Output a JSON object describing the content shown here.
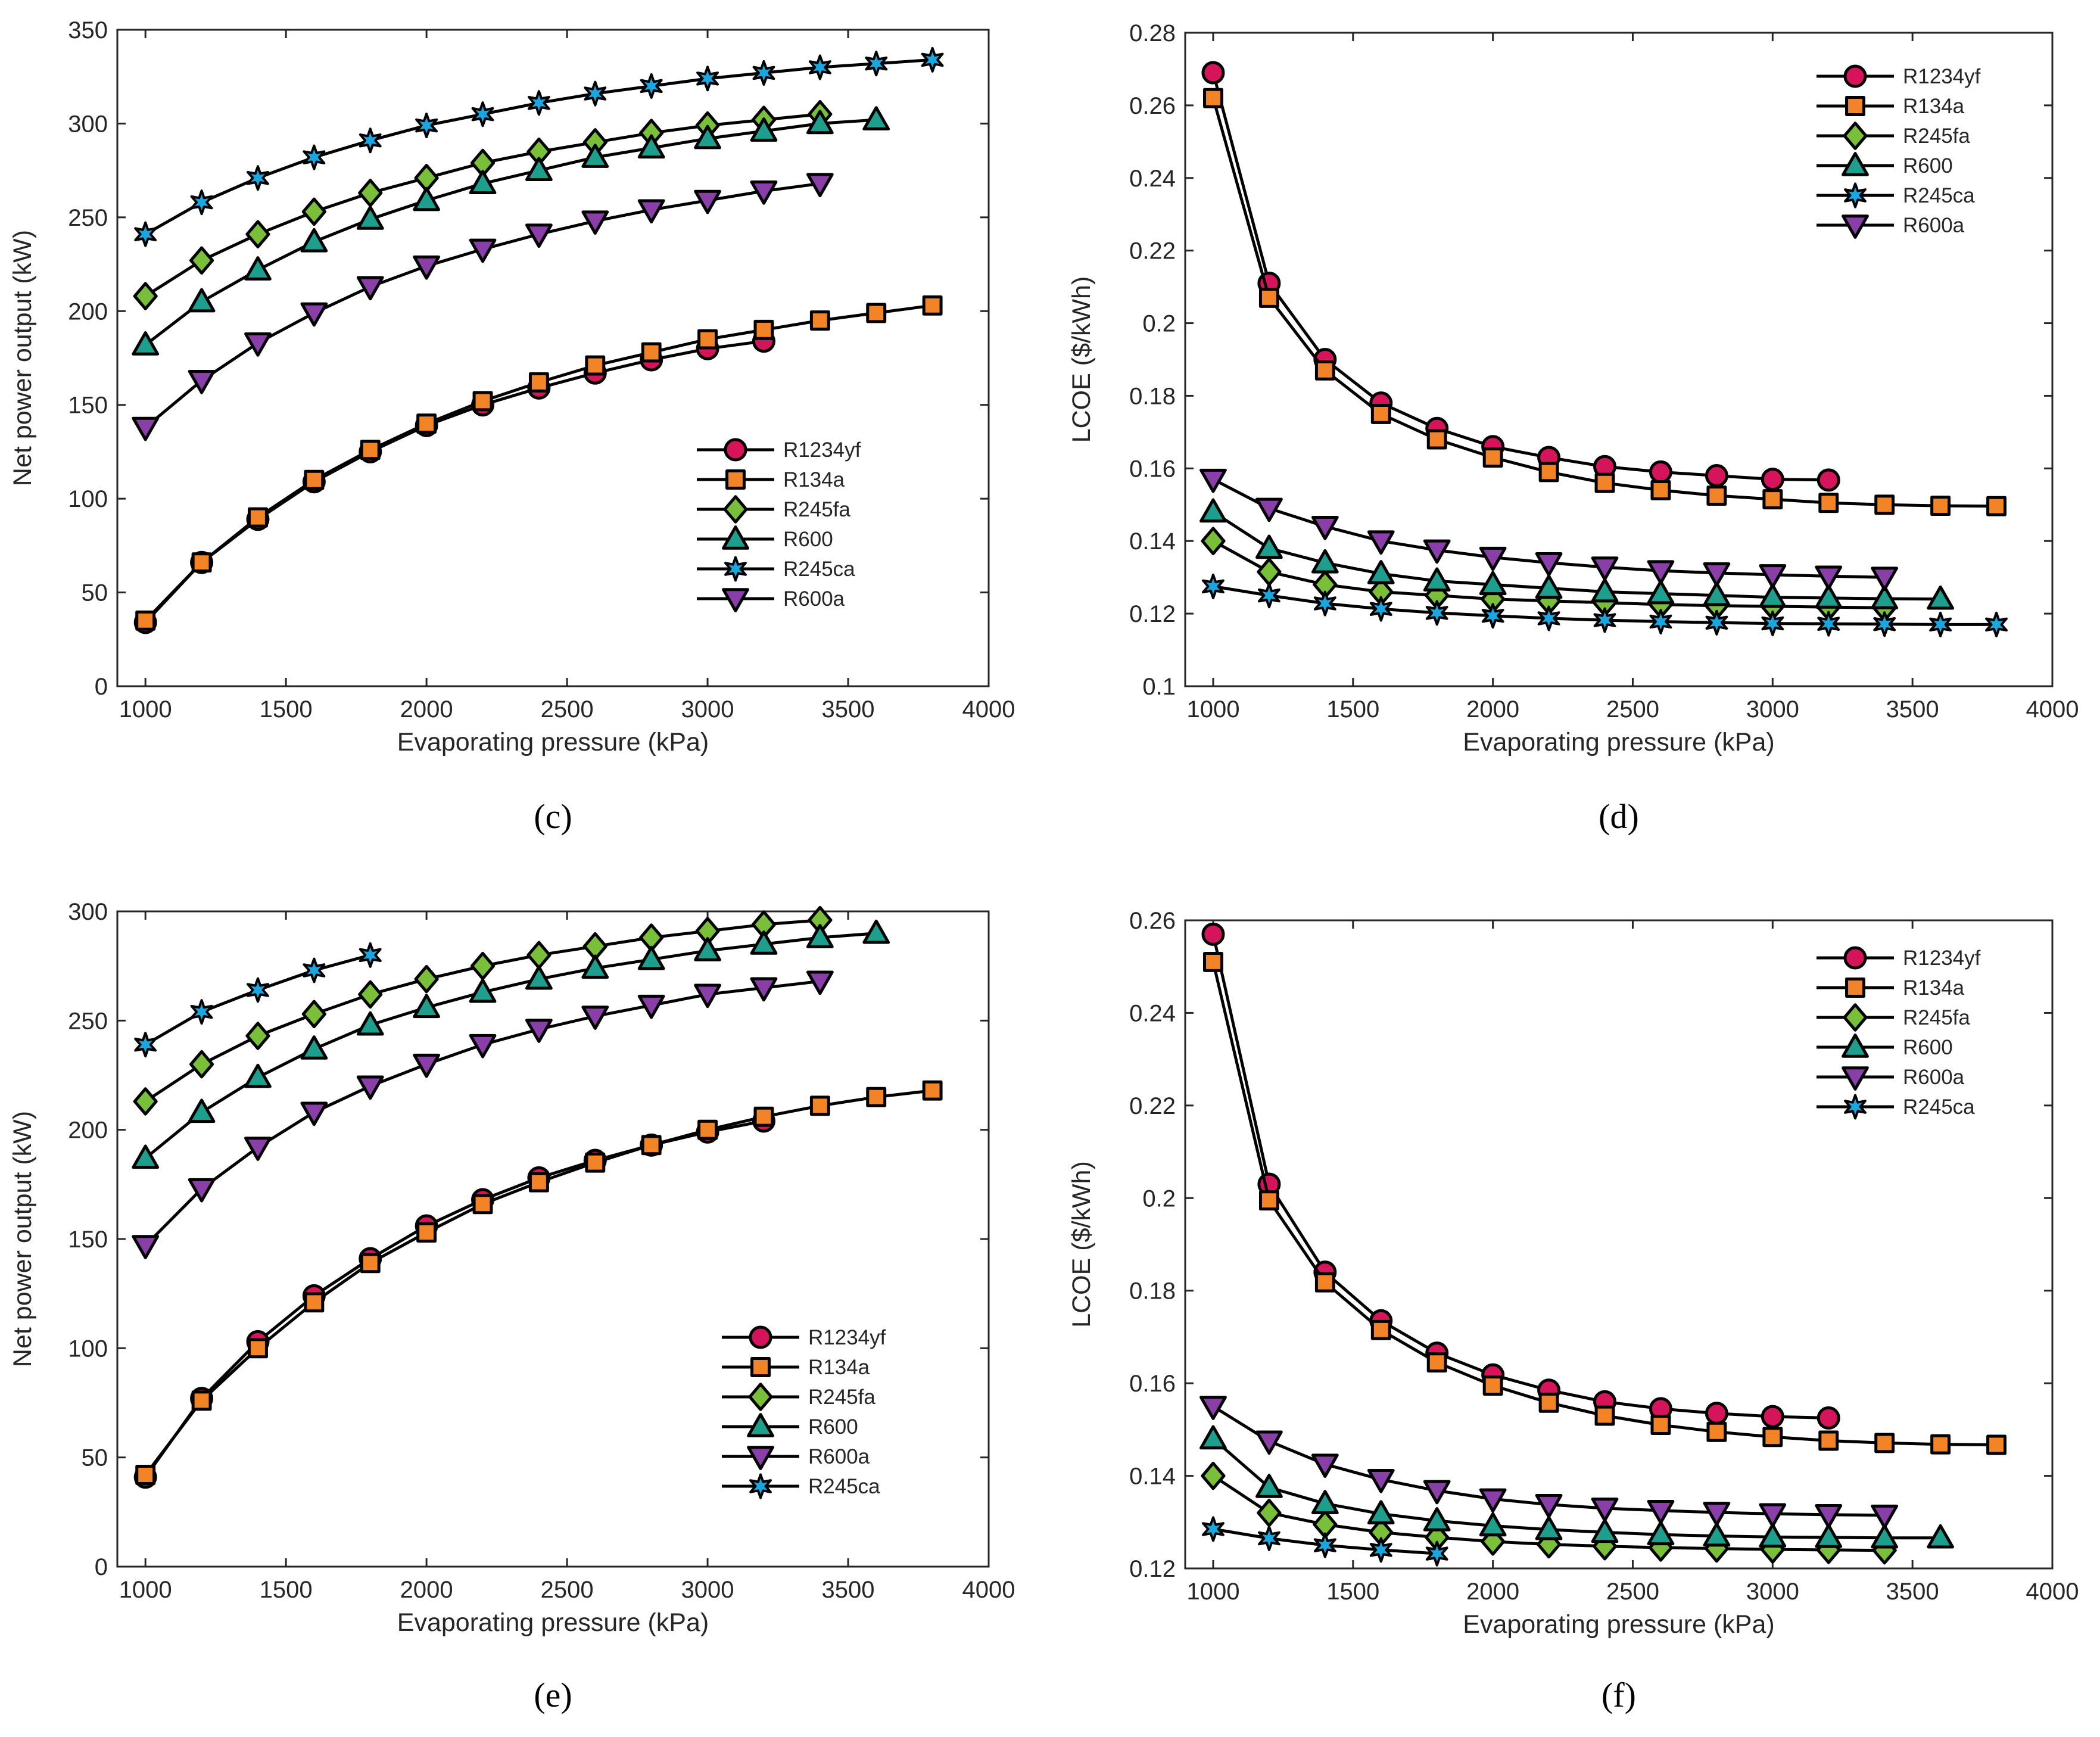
{
  "chart_data": [
    {
      "panel": "(c)",
      "type": "line",
      "xlabel": "Evaporating pressure (kPa)",
      "ylabel": "Net power output (kW)",
      "xlim": [
        900,
        4000
      ],
      "ylim": [
        0,
        350
      ],
      "xticks": [
        1000,
        1500,
        2000,
        2500,
        3000,
        3500,
        4000
      ],
      "yticks": [
        0,
        50,
        100,
        150,
        200,
        250,
        300,
        350
      ],
      "legend_position": "lower-right",
      "series": [
        {
          "name": "R1234yf",
          "marker": "circle",
          "color": "#d6145c",
          "x": [
            1000,
            1200,
            1400,
            1600,
            1800,
            2000,
            2200,
            2400,
            2600,
            2800,
            3000,
            3200
          ],
          "values": [
            34,
            66,
            89,
            109,
            125,
            139,
            150,
            159,
            167,
            174,
            180,
            184
          ]
        },
        {
          "name": "R134a",
          "marker": "square",
          "color": "#f38327",
          "x": [
            1000,
            1200,
            1400,
            1600,
            1800,
            2000,
            2200,
            2400,
            2600,
            2800,
            3000,
            3200,
            3400,
            3600,
            3800
          ],
          "values": [
            35,
            66,
            90,
            110,
            126,
            140,
            152,
            162,
            171,
            178,
            185,
            190,
            195,
            199,
            203
          ]
        },
        {
          "name": "R245fa",
          "marker": "diamond",
          "color": "#79bf3a",
          "x": [
            1000,
            1200,
            1400,
            1600,
            1800,
            2000,
            2200,
            2400,
            2600,
            2800,
            3000,
            3200,
            3400
          ],
          "values": [
            208,
            227,
            241,
            253,
            263,
            271,
            279,
            285,
            290,
            295,
            299,
            302,
            305
          ]
        },
        {
          "name": "R600",
          "marker": "triangle-up",
          "color": "#1e9e8c",
          "x": [
            1000,
            1200,
            1400,
            1600,
            1800,
            2000,
            2200,
            2400,
            2600,
            2800,
            3000,
            3200,
            3400,
            3600
          ],
          "values": [
            182,
            205,
            222,
            237,
            249,
            259,
            268,
            275,
            282,
            287,
            292,
            296,
            300,
            302
          ]
        },
        {
          "name": "R245ca",
          "marker": "star",
          "color": "#1aa7e0",
          "x": [
            1000,
            1200,
            1400,
            1600,
            1800,
            2000,
            2200,
            2400,
            2600,
            2800,
            3000,
            3200,
            3400,
            3600,
            3800
          ],
          "values": [
            241,
            258,
            271,
            282,
            291,
            299,
            305,
            311,
            316,
            320,
            324,
            327,
            330,
            332,
            334
          ]
        },
        {
          "name": "R600a",
          "marker": "triangle-down",
          "color": "#8a3ea8",
          "x": [
            1000,
            1200,
            1400,
            1600,
            1800,
            2000,
            2200,
            2400,
            2600,
            2800,
            3000,
            3200,
            3400
          ],
          "values": [
            138,
            163,
            183,
            199,
            213,
            224,
            233,
            241,
            248,
            254,
            259,
            264,
            268
          ]
        }
      ]
    },
    {
      "panel": "(d)",
      "type": "line",
      "xlabel": "Evaporating pressure (kPa)",
      "ylabel": "LCOE ($/kWh)",
      "xlim": [
        900,
        4000
      ],
      "ylim": [
        0.1,
        0.28
      ],
      "xticks": [
        1000,
        1500,
        2000,
        2500,
        3000,
        3500,
        4000
      ],
      "yticks": [
        0.1,
        0.12,
        0.14,
        0.16,
        0.18,
        0.2,
        0.22,
        0.24,
        0.26,
        0.28
      ],
      "legend_position": "upper-right",
      "series": [
        {
          "name": "R1234yf",
          "marker": "circle",
          "color": "#d6145c",
          "x": [
            1000,
            1200,
            1400,
            1600,
            1800,
            2000,
            2200,
            2400,
            2600,
            2800,
            3000,
            3200
          ],
          "values": [
            0.269,
            0.211,
            0.19,
            0.178,
            0.171,
            0.166,
            0.163,
            0.1605,
            0.159,
            0.158,
            0.157,
            0.1568
          ]
        },
        {
          "name": "R134a",
          "marker": "square",
          "color": "#f38327",
          "x": [
            1000,
            1200,
            1400,
            1600,
            1800,
            2000,
            2200,
            2400,
            2600,
            2800,
            3000,
            3200,
            3400,
            3600,
            3800
          ],
          "values": [
            0.262,
            0.207,
            0.187,
            0.175,
            0.168,
            0.163,
            0.159,
            0.156,
            0.154,
            0.1525,
            0.1515,
            0.1505,
            0.15,
            0.1497,
            0.1496
          ]
        },
        {
          "name": "R245fa",
          "marker": "diamond",
          "color": "#79bf3a",
          "x": [
            1000,
            1200,
            1400,
            1600,
            1800,
            2000,
            2200,
            2400,
            2600,
            2800,
            3000,
            3200,
            3400
          ],
          "values": [
            0.14,
            0.1315,
            0.128,
            0.126,
            0.125,
            0.124,
            0.1235,
            0.123,
            0.1225,
            0.1222,
            0.122,
            0.1218,
            0.1216
          ]
        },
        {
          "name": "R600",
          "marker": "triangle-up",
          "color": "#1e9e8c",
          "x": [
            1000,
            1200,
            1400,
            1600,
            1800,
            2000,
            2200,
            2400,
            2600,
            2800,
            3000,
            3200,
            3400,
            3600
          ],
          "values": [
            0.148,
            0.138,
            0.134,
            0.131,
            0.129,
            0.128,
            0.127,
            0.126,
            0.1255,
            0.125,
            0.1245,
            0.1243,
            0.1241,
            0.124
          ]
        },
        {
          "name": "R245ca",
          "marker": "star",
          "color": "#1aa7e0",
          "x": [
            1000,
            1200,
            1400,
            1600,
            1800,
            2000,
            2200,
            2400,
            2600,
            2800,
            3000,
            3200,
            3400,
            3600,
            3800
          ],
          "values": [
            0.1275,
            0.125,
            0.1228,
            0.1213,
            0.1202,
            0.1194,
            0.1187,
            0.1182,
            0.1178,
            0.1175,
            0.1173,
            0.1172,
            0.1171,
            0.117,
            0.117
          ]
        },
        {
          "name": "R600a",
          "marker": "triangle-down",
          "color": "#8a3ea8",
          "x": [
            1000,
            1200,
            1400,
            1600,
            1800,
            2000,
            2200,
            2400,
            2600,
            2800,
            3000,
            3200,
            3400
          ],
          "values": [
            0.157,
            0.149,
            0.144,
            0.14,
            0.1375,
            0.1355,
            0.134,
            0.1328,
            0.1318,
            0.1312,
            0.1307,
            0.1303,
            0.13
          ]
        }
      ]
    },
    {
      "panel": "(e)",
      "type": "line",
      "xlabel": "Evaporating pressure (kPa)",
      "ylabel": "Net power output (kW)",
      "xlim": [
        900,
        4000
      ],
      "ylim": [
        0,
        300
      ],
      "xticks": [
        1000,
        1500,
        2000,
        2500,
        3000,
        3500,
        4000
      ],
      "yticks": [
        0,
        50,
        100,
        150,
        200,
        250,
        300
      ],
      "legend_position": "lower-right",
      "series": [
        {
          "name": "R1234yf",
          "marker": "circle",
          "color": "#d6145c",
          "x": [
            1000,
            1200,
            1400,
            1600,
            1800,
            2000,
            2200,
            2400,
            2600,
            2800,
            3000,
            3200
          ],
          "values": [
            41,
            77,
            103,
            124,
            141,
            156,
            168,
            178,
            186,
            193,
            199,
            204
          ]
        },
        {
          "name": "R134a",
          "marker": "square",
          "color": "#f38327",
          "x": [
            1000,
            1200,
            1400,
            1600,
            1800,
            2000,
            2200,
            2400,
            2600,
            2800,
            3000,
            3200,
            3400,
            3600,
            3800
          ],
          "values": [
            42,
            76,
            100,
            121,
            139,
            153,
            166,
            176,
            185,
            193,
            200,
            206,
            211,
            215,
            218
          ]
        },
        {
          "name": "R245fa",
          "marker": "diamond",
          "color": "#79bf3a",
          "x": [
            1000,
            1200,
            1400,
            1600,
            1800,
            2000,
            2200,
            2400,
            2600,
            2800,
            3000,
            3200,
            3400
          ],
          "values": [
            213,
            230,
            243,
            253,
            262,
            269,
            275,
            280,
            284,
            288,
            291,
            294,
            296
          ]
        },
        {
          "name": "R600",
          "marker": "triangle-up",
          "color": "#1e9e8c",
          "x": [
            1000,
            1200,
            1400,
            1600,
            1800,
            2000,
            2200,
            2400,
            2600,
            2800,
            3000,
            3200,
            3400,
            3600
          ],
          "values": [
            187,
            208,
            224,
            237,
            248,
            256,
            263,
            269,
            274,
            278,
            282,
            285,
            288,
            290
          ]
        },
        {
          "name": "R600a",
          "marker": "triangle-down",
          "color": "#8a3ea8",
          "x": [
            1000,
            1200,
            1400,
            1600,
            1800,
            2000,
            2200,
            2400,
            2600,
            2800,
            3000,
            3200,
            3400
          ],
          "values": [
            147,
            173,
            192,
            208,
            220,
            230,
            239,
            246,
            252,
            257,
            262,
            265,
            268
          ]
        },
        {
          "name": "R245ca",
          "marker": "star",
          "color": "#1aa7e0",
          "x": [
            1000,
            1200,
            1400,
            1600,
            1800
          ],
          "values": [
            239,
            254,
            264,
            273,
            280
          ]
        }
      ]
    },
    {
      "panel": "(f)",
      "type": "line",
      "xlabel": "Evaporating pressure (kPa)",
      "ylabel": "LCOE ($/kWh)",
      "xlim": [
        900,
        4000
      ],
      "ylim": [
        0.12,
        0.26
      ],
      "xticks": [
        1000,
        1500,
        2000,
        2500,
        3000,
        3500,
        4000
      ],
      "yticks": [
        0.12,
        0.14,
        0.16,
        0.18,
        0.2,
        0.22,
        0.24,
        0.26
      ],
      "legend_position": "upper-right",
      "series": [
        {
          "name": "R1234yf",
          "marker": "circle",
          "color": "#d6145c",
          "x": [
            1000,
            1200,
            1400,
            1600,
            1800,
            2000,
            2200,
            2400,
            2600,
            2800,
            3000,
            3200
          ],
          "values": [
            0.257,
            0.203,
            0.184,
            0.1735,
            0.1665,
            0.1618,
            0.1585,
            0.156,
            0.1545,
            0.1535,
            0.1528,
            0.1525
          ]
        },
        {
          "name": "R134a",
          "marker": "square",
          "color": "#f38327",
          "x": [
            1000,
            1200,
            1400,
            1600,
            1800,
            2000,
            2200,
            2400,
            2600,
            2800,
            3000,
            3200,
            3400,
            3600,
            3800
          ],
          "values": [
            0.251,
            0.1995,
            0.1818,
            0.1715,
            0.1645,
            0.1595,
            0.1558,
            0.153,
            0.151,
            0.1495,
            0.1484,
            0.1476,
            0.1471,
            0.1468,
            0.1467
          ]
        },
        {
          "name": "R245fa",
          "marker": "diamond",
          "color": "#79bf3a",
          "x": [
            1000,
            1200,
            1400,
            1600,
            1800,
            2000,
            2200,
            2400,
            2600,
            2800,
            3000,
            3200,
            3400
          ],
          "values": [
            0.14,
            0.132,
            0.1295,
            0.1278,
            0.1267,
            0.1258,
            0.1252,
            0.1248,
            0.1245,
            0.1243,
            0.1241,
            0.124,
            0.1239
          ]
        },
        {
          "name": "R600",
          "marker": "triangle-up",
          "color": "#1e9e8c",
          "x": [
            1000,
            1200,
            1400,
            1600,
            1800,
            2000,
            2200,
            2400,
            2600,
            2800,
            3000,
            3200,
            3400,
            3600
          ],
          "values": [
            0.148,
            0.1375,
            0.134,
            0.1318,
            0.1303,
            0.1292,
            0.1284,
            0.1278,
            0.1273,
            0.127,
            0.1268,
            0.1267,
            0.1266,
            0.1266
          ]
        },
        {
          "name": "R600a",
          "marker": "triangle-down",
          "color": "#8a3ea8",
          "x": [
            1000,
            1200,
            1400,
            1600,
            1800,
            2000,
            2200,
            2400,
            2600,
            2800,
            3000,
            3200,
            3400
          ],
          "values": [
            0.155,
            0.1475,
            0.1425,
            0.1392,
            0.1368,
            0.135,
            0.1338,
            0.133,
            0.1325,
            0.1321,
            0.1318,
            0.1316,
            0.1315
          ]
        },
        {
          "name": "R245ca",
          "marker": "star",
          "color": "#1aa7e0",
          "x": [
            1000,
            1200,
            1400,
            1600,
            1800
          ],
          "values": [
            0.1285,
            0.1265,
            0.125,
            0.124,
            0.1232
          ]
        }
      ]
    }
  ]
}
